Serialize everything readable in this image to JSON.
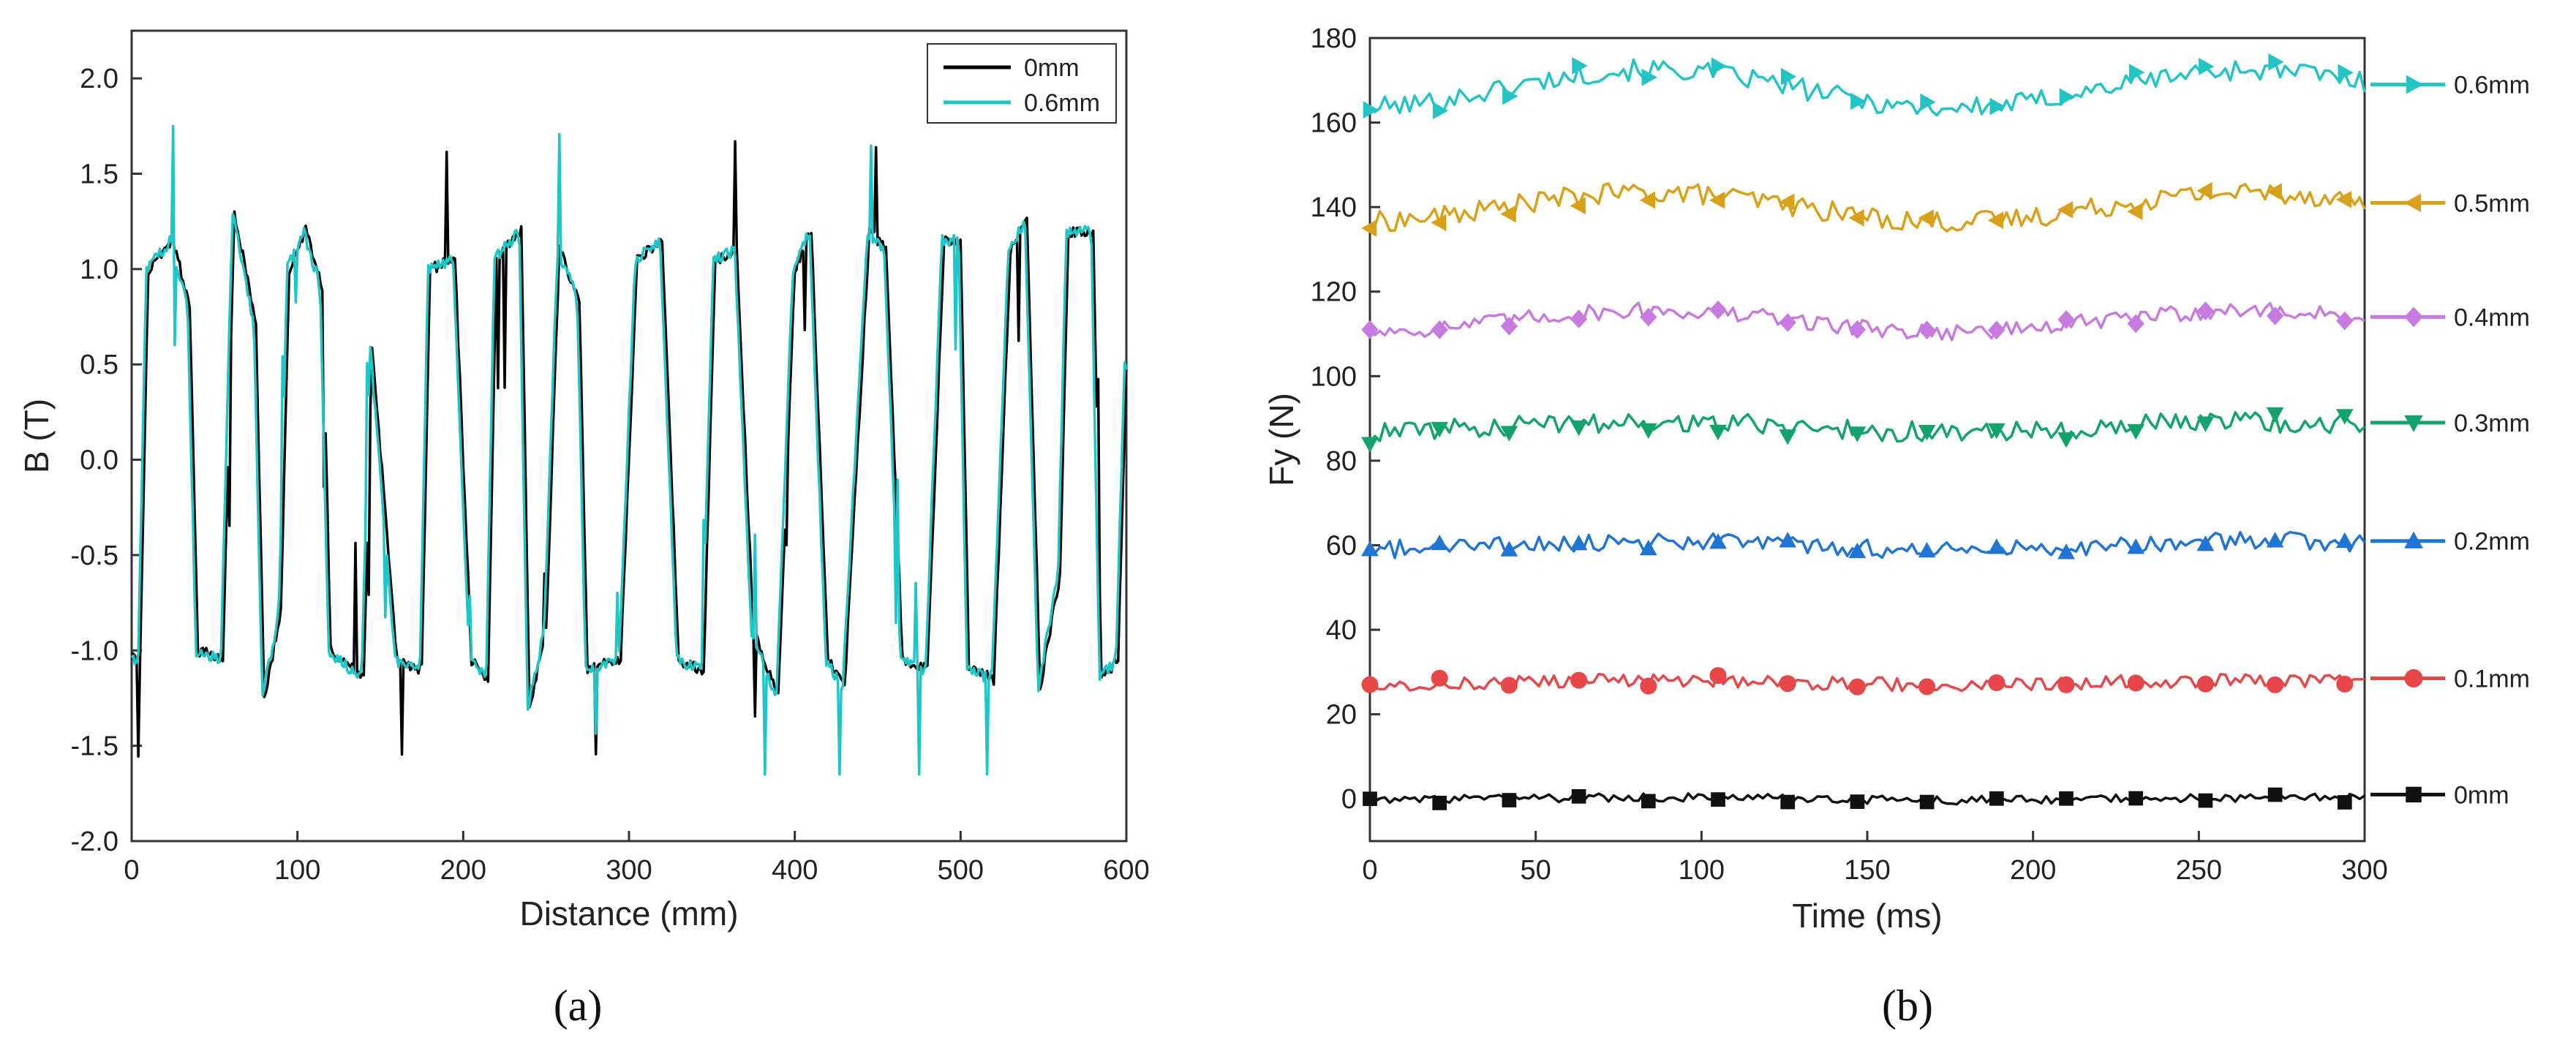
{
  "chart_data": [
    {
      "panel": "a",
      "caption": "(a)",
      "type": "line",
      "title": "",
      "xlabel": "Distance (mm)",
      "ylabel": "B (T)",
      "xlim": [
        0,
        600
      ],
      "ylim": [
        -2.0,
        2.25
      ],
      "xticks": [
        0,
        100,
        200,
        300,
        400,
        500,
        600
      ],
      "xtick_labels": [
        "0",
        "100",
        "200",
        "300",
        "400",
        "500",
        "600"
      ],
      "yticks": [
        -2.0,
        -1.5,
        -1.0,
        -0.5,
        0.0,
        0.5,
        1.0,
        1.5,
        2.0
      ],
      "ytick_labels": [
        "-2.0",
        "-1.5",
        "-1.0",
        "-0.5",
        "0.0",
        "0.5",
        "1.0",
        "1.5",
        "2.0"
      ],
      "legend_position": "top-right",
      "series": [
        {
          "name": "0mm",
          "color": "#000000",
          "sign_offset": 0
        },
        {
          "name": "0.6mm",
          "color": "#1cc7c7",
          "sign_offset": 3
        }
      ],
      "waveform": {
        "x_start": 0,
        "x_end": 600,
        "step": 1,
        "knots": [
          [
            0,
            -1.0
          ],
          [
            5,
            -1.1
          ],
          [
            10,
            1.0
          ],
          [
            25,
            1.15
          ],
          [
            35,
            0.8
          ],
          [
            40,
            -1.0
          ],
          [
            55,
            -1.05
          ],
          [
            62,
            1.3
          ],
          [
            75,
            0.7
          ],
          [
            80,
            -1.25
          ],
          [
            90,
            -0.8
          ],
          [
            95,
            1.0
          ],
          [
            105,
            1.2
          ],
          [
            115,
            0.9
          ],
          [
            120,
            -1.0
          ],
          [
            140,
            -1.15
          ],
          [
            145,
            0.6
          ],
          [
            160,
            -1.05
          ],
          [
            175,
            -1.1
          ],
          [
            180,
            1.0
          ],
          [
            195,
            1.05
          ],
          [
            205,
            -1.05
          ],
          [
            215,
            -1.15
          ],
          [
            220,
            1.05
          ],
          [
            235,
            1.2
          ],
          [
            240,
            -1.3
          ],
          [
            250,
            -0.9
          ],
          [
            258,
            1.1
          ],
          [
            270,
            0.85
          ],
          [
            275,
            -1.1
          ],
          [
            295,
            -1.05
          ],
          [
            305,
            1.05
          ],
          [
            320,
            1.15
          ],
          [
            330,
            -1.05
          ],
          [
            345,
            -1.1
          ],
          [
            352,
            1.05
          ],
          [
            365,
            1.1
          ],
          [
            375,
            -0.9
          ],
          [
            390,
            -1.25
          ],
          [
            400,
            1.0
          ],
          [
            410,
            1.2
          ],
          [
            420,
            -1.05
          ],
          [
            430,
            -1.2
          ],
          [
            445,
            1.2
          ],
          [
            455,
            1.1
          ],
          [
            465,
            -1.05
          ],
          [
            480,
            -1.1
          ],
          [
            490,
            1.15
          ],
          [
            500,
            1.15
          ],
          [
            505,
            -1.1
          ],
          [
            520,
            -1.15
          ],
          [
            530,
            1.1
          ],
          [
            540,
            1.25
          ],
          [
            548,
            -1.2
          ],
          [
            560,
            -0.6
          ],
          [
            565,
            1.2
          ],
          [
            580,
            1.2
          ],
          [
            585,
            -1.15
          ],
          [
            595,
            -1.05
          ],
          [
            600,
            0.5
          ]
        ]
      }
    },
    {
      "panel": "b",
      "caption": "(b)",
      "type": "line",
      "title": "",
      "xlabel": "Time (ms)",
      "ylabel": "Fy (N)",
      "xlim": [
        0,
        300
      ],
      "ylim": [
        -10,
        180
      ],
      "xticks": [
        0,
        50,
        100,
        150,
        200,
        250,
        300
      ],
      "xtick_labels": [
        "0",
        "50",
        "100",
        "150",
        "200",
        "250",
        "300"
      ],
      "yticks": [
        0,
        20,
        40,
        60,
        80,
        100,
        120,
        140,
        160,
        180
      ],
      "ytick_labels": [
        "0",
        "20",
        "40",
        "60",
        "80",
        "100",
        "120",
        "140",
        "160",
        "180"
      ],
      "legend_position": "right",
      "time_step": 1.5,
      "marker_interval": 14,
      "series": [
        {
          "name": "0.6mm",
          "color": "#22c4c4",
          "marker": "triangle-right",
          "start": 163,
          "base": 168,
          "swing": 4.5,
          "noise": 2.5
        },
        {
          "name": "0.5mm",
          "color": "#d9a11a",
          "marker": "triangle-left",
          "start": 135,
          "base": 140,
          "swing": 3.5,
          "noise": 2.5
        },
        {
          "name": "0.4mm",
          "color": "#c77ae0",
          "marker": "diamond",
          "start": 111,
          "base": 113,
          "swing": 2.5,
          "noise": 2.0
        },
        {
          "name": "0.3mm",
          "color": "#13a36c",
          "marker": "triangle-down",
          "start": 84,
          "base": 88,
          "swing": 1.2,
          "noise": 2.5
        },
        {
          "name": "0.2mm",
          "color": "#1f74d6",
          "marker": "triangle-up",
          "start": 59,
          "base": 60,
          "swing": 1.0,
          "noise": 2.2
        },
        {
          "name": "0.1mm",
          "color": "#e8474a",
          "marker": "circle",
          "start": 27,
          "base": 27.5,
          "swing": 0.5,
          "noise": 1.6
        },
        {
          "name": "0mm",
          "color": "#111111",
          "marker": "square",
          "start": 0,
          "base": 0,
          "swing": 0.3,
          "noise": 1.0
        }
      ]
    }
  ]
}
